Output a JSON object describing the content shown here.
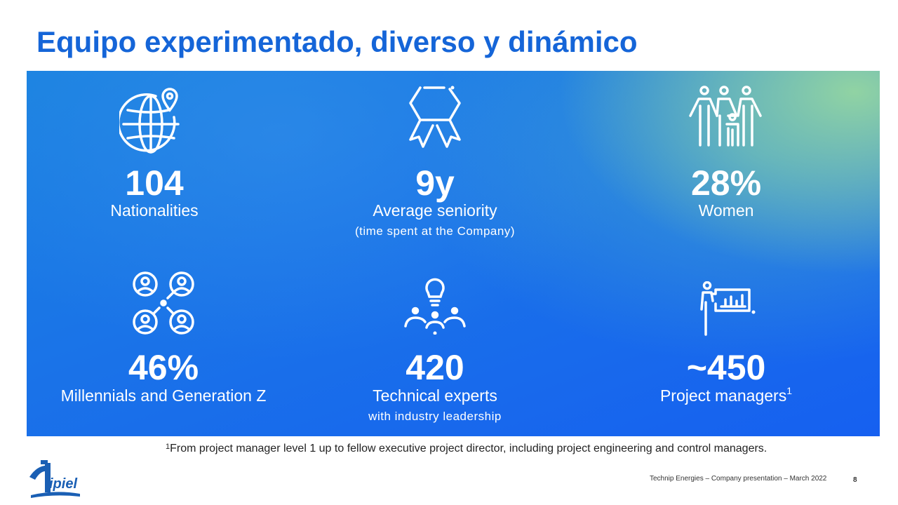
{
  "slide": {
    "title": "Equipo experimentado, diverso y dinámico",
    "page_number": "8",
    "footer": "Technip Energies – Company presentation – March 2022"
  },
  "stats": [
    {
      "value": "104",
      "label": "Nationalities",
      "sub": "",
      "icon": "globe-location-icon"
    },
    {
      "value": "9y",
      "label": "Average seniority",
      "sub": "(time spent at the Company)",
      "icon": "award-ribbon-icon"
    },
    {
      "value": "28%",
      "label": "Women",
      "sub": "",
      "icon": "family-icon"
    },
    {
      "value": "46%",
      "label": "Millennials and Generation Z",
      "sub": "",
      "icon": "people-network-icon"
    },
    {
      "value": "420",
      "label": "Technical experts",
      "sub": "with industry leadership",
      "icon": "lightbulb-team-icon"
    },
    {
      "value": "~450",
      "label": "Project managers",
      "label_sup": "1",
      "sub": "",
      "icon": "presenter-chart-icon"
    }
  ],
  "footnote": {
    "marker": "1",
    "text": "From project manager level 1 up to fellow executive project director, including project engineering and control managers."
  },
  "logo": {
    "text": "tipiel",
    "color": "#1a5fb4"
  },
  "colors": {
    "title": "#1565d8",
    "panel": "#1a73e8",
    "panel_accent": "#96d7a0"
  }
}
